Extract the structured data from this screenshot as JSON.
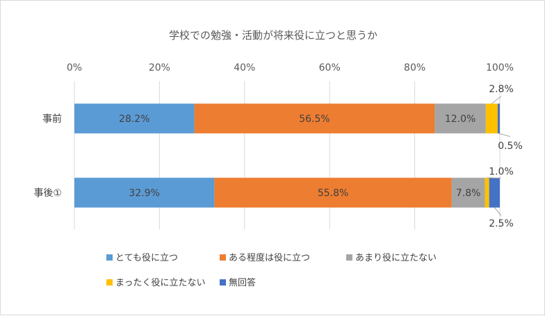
{
  "chart_data": {
    "type": "bar",
    "orientation": "horizontal",
    "stacked": "percent",
    "title": "学校での勉強・活動が将来役に立つと思うか",
    "xlim": [
      0,
      100
    ],
    "x_ticks": [
      "0%",
      "20%",
      "40%",
      "60%",
      "80%",
      "100%"
    ],
    "x_tick_values": [
      0,
      20,
      40,
      60,
      80,
      100
    ],
    "grid": true,
    "legend_position": "bottom",
    "categories": [
      "事前",
      "事後①"
    ],
    "series": [
      {
        "name": "とても役に立つ",
        "color": "#5b9bd5",
        "values": [
          28.2,
          32.9
        ],
        "labels": [
          "28.2%",
          "32.9%"
        ]
      },
      {
        "name": "ある程度は役に立つ",
        "color": "#ed7d31",
        "values": [
          56.5,
          55.8
        ],
        "labels": [
          "56.5%",
          "55.8%"
        ]
      },
      {
        "name": "あまり役に立たない",
        "color": "#a5a5a5",
        "values": [
          12.0,
          7.8
        ],
        "labels": [
          "12.0%",
          "7.8%"
        ]
      },
      {
        "name": "まったく役に立たない",
        "color": "#ffc000",
        "values": [
          2.8,
          1.0
        ],
        "labels": [
          "2.8%",
          "1.0%"
        ]
      },
      {
        "name": "無回答",
        "color": "#4472c4",
        "values": [
          0.5,
          2.5
        ],
        "labels": [
          "0.5%",
          "2.5%"
        ]
      }
    ]
  }
}
